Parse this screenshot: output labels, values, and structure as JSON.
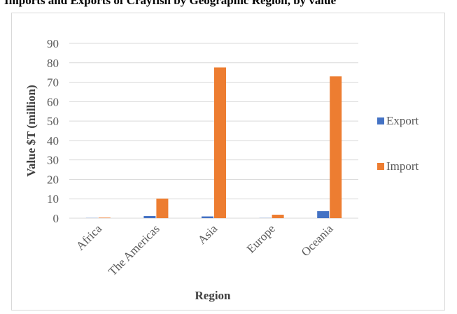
{
  "caption": "Imports and Exports of Crayfish by Geographic Region, by value",
  "chart_data": {
    "type": "bar",
    "categories": [
      "Africa",
      "The Americas",
      "Asia",
      "Europe",
      "Oceania"
    ],
    "series": [
      {
        "name": "Export",
        "values": [
          0.1,
          1.1,
          0.9,
          0.1,
          3.6
        ],
        "color": "#4472c4"
      },
      {
        "name": "Import",
        "values": [
          0.3,
          10.1,
          77.6,
          1.8,
          73.0
        ],
        "color": "#ed7d31"
      }
    ],
    "xlabel": "Region",
    "ylabel": "Value $T (million)",
    "ylim": [
      0,
      90
    ],
    "yticks": [
      0,
      10,
      20,
      30,
      40,
      50,
      60,
      70,
      80,
      90
    ],
    "grid": true,
    "legend_position": "right"
  }
}
